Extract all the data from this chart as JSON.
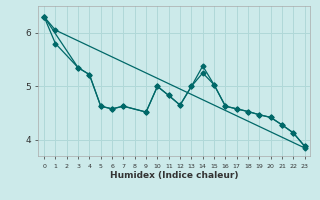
{
  "xlabel": "Humidex (Indice chaleur)",
  "background_color": "#cceaea",
  "grid_color": "#b0d8d8",
  "line_color": "#006868",
  "xlim": [
    -0.5,
    23.5
  ],
  "ylim": [
    3.7,
    6.5
  ],
  "yticks": [
    4,
    5,
    6
  ],
  "xticks": [
    0,
    1,
    2,
    3,
    4,
    5,
    6,
    7,
    8,
    9,
    10,
    11,
    12,
    13,
    14,
    15,
    16,
    17,
    18,
    19,
    20,
    21,
    22,
    23
  ],
  "series1_x": [
    0,
    1,
    23
  ],
  "series1_y": [
    6.3,
    6.05,
    3.85
  ],
  "series2_x": [
    0,
    1,
    3,
    4,
    5,
    6,
    7,
    9,
    10,
    11,
    12,
    13,
    14,
    15,
    16,
    17,
    18,
    19,
    20,
    21,
    22,
    23
  ],
  "series2_y": [
    6.3,
    5.8,
    5.35,
    5.22,
    4.63,
    4.58,
    4.63,
    4.52,
    5.0,
    4.83,
    4.65,
    5.0,
    5.25,
    5.03,
    4.63,
    4.58,
    4.53,
    4.47,
    4.42,
    4.28,
    4.13,
    3.88
  ],
  "series3_x": [
    0,
    3,
    4,
    5,
    6,
    7,
    9,
    10,
    11,
    12,
    13,
    14,
    15,
    16,
    17,
    18,
    19,
    20,
    21,
    22,
    23
  ],
  "series3_y": [
    6.3,
    5.35,
    5.22,
    4.63,
    4.58,
    4.63,
    4.52,
    5.0,
    4.83,
    4.65,
    5.0,
    5.38,
    5.03,
    4.63,
    4.58,
    4.53,
    4.47,
    4.42,
    4.28,
    4.13,
    3.88
  ],
  "markersize": 2.5,
  "linewidth": 0.9
}
